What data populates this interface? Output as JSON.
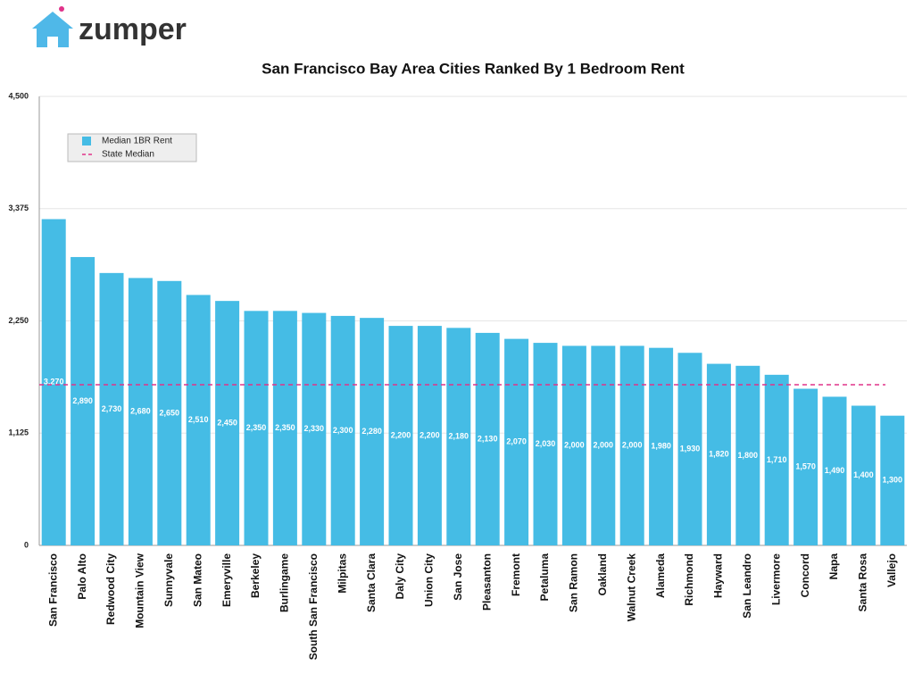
{
  "logo": "zumper",
  "chart_data": {
    "type": "bar",
    "title": "San Francisco Bay Area Cities Ranked By 1 Bedroom Rent",
    "categories": [
      "San Francisco",
      "Palo Alto",
      "Redwood City",
      "Mountain View",
      "Sunnyvale",
      "San Mateo",
      "Emeryville",
      "Berkeley",
      "Burlingame",
      "South San Francisco",
      "Milpitas",
      "Santa Clara",
      "Daly City",
      "Union City",
      "San Jose",
      "Pleasanton",
      "Fremont",
      "Petaluma",
      "San Ramon",
      "Oakland",
      "Walnut Creek",
      "Alameda",
      "Richmond",
      "Hayward",
      "San Leandro",
      "Livermore",
      "Concord",
      "Napa",
      "Santa Rosa",
      "Vallejo"
    ],
    "series": [
      {
        "name": "Median 1BR Rent",
        "color": "#45bce5",
        "values": [
          3270,
          2890,
          2730,
          2680,
          2650,
          2510,
          2450,
          2350,
          2350,
          2330,
          2300,
          2280,
          2200,
          2200,
          2180,
          2130,
          2070,
          2030,
          2000,
          2000,
          2000,
          1980,
          1930,
          1820,
          1800,
          1710,
          1570,
          1490,
          1400,
          1300
        ],
        "value_labels": [
          "3,270",
          "2,890",
          "2,730",
          "2,680",
          "2,650",
          "2,510",
          "2,450",
          "2,350",
          "2,350",
          "2,330",
          "2,300",
          "2,280",
          "2,200",
          "2,200",
          "2,180",
          "2,130",
          "2,070",
          "2,030",
          "2,000",
          "2,000",
          "2,000",
          "1,980",
          "1,930",
          "1,820",
          "1,800",
          "1,710",
          "1,570",
          "1,490",
          "1,400",
          "1,300"
        ]
      }
    ],
    "reference_lines": [
      {
        "name": "State Median",
        "value": 1610,
        "color": "#e0338a"
      }
    ],
    "ylim": [
      0,
      4500
    ],
    "yticks": [
      0,
      {
        "value": 1125,
        "label": "1,125"
      },
      {
        "value": 2250,
        "label": "2,250"
      },
      {
        "value": 3375,
        "label": "3,375"
      },
      {
        "value": 4500,
        "label": "4,500"
      }
    ],
    "grid": true,
    "legend": "upper left"
  }
}
